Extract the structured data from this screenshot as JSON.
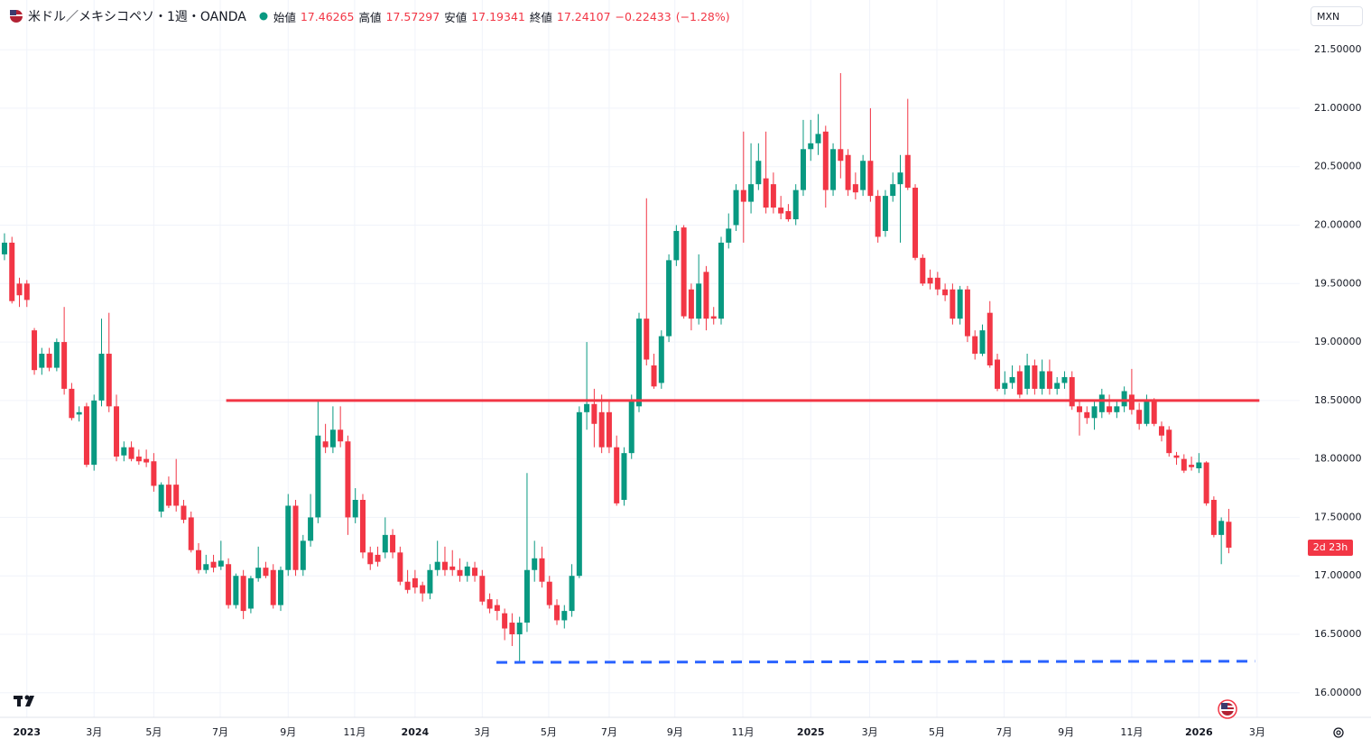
{
  "chart_data": {
    "type": "candlestick",
    "title": "米ドル／メキシコペソ・1週・OANDA",
    "ohlc_labels": [
      "始値",
      "高値",
      "安値",
      "終値"
    ],
    "change": "−0.22433",
    "change_pct": "(−1.28%)",
    "currency": "MXN",
    "countdown": "2d 23h",
    "up_color": "#089981",
    "down_color": "#f23645",
    "grid": true,
    "open": [
      19.75,
      19.85,
      19.5,
      19.5,
      19.1,
      18.78,
      18.9,
      18.78,
      19.0,
      18.6,
      18.38,
      18.45,
      17.95,
      18.5,
      18.9,
      18.45,
      18.03,
      18.1,
      18.02,
      18.0,
      17.98,
      17.55,
      17.78,
      17.78,
      17.6,
      17.5,
      17.22,
      17.05,
      17.12,
      17.08,
      17.1,
      16.75,
      17.0,
      16.72,
      16.98,
      17.07,
      17.05,
      16.75,
      17.05,
      17.6,
      17.05,
      17.3,
      17.5,
      18.15,
      18.1,
      18.25,
      18.15,
      17.5,
      17.65,
      17.2,
      17.18,
      17.2,
      17.35,
      17.2,
      16.95,
      16.98,
      16.92,
      16.85,
      17.05,
      17.12,
      17.08,
      17.05,
      17.0,
      17.07,
      17.0,
      16.8,
      16.75,
      16.68,
      16.6,
      16.5,
      16.6,
      17.05,
      17.15,
      16.95,
      16.75,
      16.62,
      16.7,
      17.0,
      18.4,
      18.47,
      18.4,
      18.4,
      18.1,
      17.65,
      18.05,
      18.45,
      19.2,
      18.8,
      18.65,
      19.05,
      19.7,
      19.98,
      19.45,
      19.2,
      19.6,
      19.22,
      19.2,
      19.85,
      20.0,
      20.3,
      20.2,
      20.35,
      20.4,
      20.35,
      20.15,
      20.12,
      20.05,
      20.3,
      20.65,
      20.7,
      20.8,
      20.3,
      20.65,
      20.6,
      20.35,
      20.3,
      20.55,
      20.25,
      19.95,
      20.25,
      20.35,
      20.6,
      20.32,
      19.72,
      19.55,
      19.55,
      19.45,
      19.45,
      19.2,
      19.45,
      19.05,
      18.9,
      19.25,
      18.85,
      18.6,
      18.65,
      18.75,
      18.6,
      18.8,
      18.6,
      18.75,
      18.6,
      18.65,
      18.7,
      18.45,
      18.4,
      18.35,
      18.4,
      18.45,
      18.4,
      18.45,
      18.55,
      18.42,
      18.3,
      18.5,
      18.28,
      18.25,
      18.03,
      18.0,
      17.95,
      17.92,
      17.97,
      17.65,
      17.35,
      17.46265
    ],
    "high": [
      19.93,
      19.9,
      19.55,
      19.53,
      19.12,
      18.95,
      18.95,
      19.03,
      19.3,
      18.65,
      18.45,
      18.48,
      18.55,
      19.2,
      19.25,
      18.55,
      18.15,
      18.15,
      18.08,
      18.08,
      18.05,
      17.8,
      17.85,
      18.0,
      17.65,
      17.55,
      17.28,
      17.18,
      17.18,
      17.3,
      17.15,
      17.02,
      17.05,
      17.0,
      17.25,
      17.12,
      17.1,
      17.08,
      17.7,
      17.65,
      17.35,
      17.7,
      18.5,
      18.3,
      18.45,
      18.45,
      18.2,
      17.75,
      17.7,
      17.25,
      17.25,
      17.5,
      17.4,
      17.25,
      17.05,
      17.05,
      16.95,
      17.1,
      17.3,
      17.25,
      17.22,
      17.15,
      17.12,
      17.12,
      17.05,
      16.85,
      16.8,
      16.72,
      16.68,
      16.65,
      17.88,
      17.3,
      17.25,
      17.0,
      16.8,
      16.75,
      17.1,
      18.45,
      19.0,
      18.6,
      18.55,
      18.5,
      18.2,
      18.1,
      18.55,
      19.25,
      20.23,
      18.9,
      19.1,
      19.75,
      20.0,
      20.0,
      19.5,
      19.75,
      19.65,
      19.3,
      19.9,
      20.1,
      20.35,
      20.8,
      20.7,
      20.7,
      20.8,
      20.45,
      20.25,
      20.18,
      20.35,
      20.9,
      20.9,
      20.95,
      20.85,
      20.7,
      21.3,
      20.65,
      20.45,
      20.6,
      21.0,
      20.3,
      20.3,
      20.45,
      20.6,
      21.08,
      20.35,
      19.75,
      19.62,
      19.6,
      19.5,
      19.5,
      19.48,
      19.48,
      19.1,
      19.15,
      19.35,
      18.9,
      18.75,
      18.8,
      18.8,
      18.9,
      18.85,
      18.85,
      18.85,
      18.7,
      18.75,
      18.75,
      18.5,
      18.45,
      18.5,
      18.6,
      18.55,
      18.5,
      18.62,
      18.77,
      18.48,
      18.55,
      18.52,
      18.32,
      18.28,
      18.06,
      18.04,
      18.02,
      18.05,
      17.98,
      17.68,
      17.5,
      17.57297
    ],
    "low": [
      19.7,
      19.33,
      19.3,
      19.3,
      18.72,
      18.72,
      18.75,
      18.75,
      18.55,
      18.33,
      18.32,
      17.93,
      17.9,
      18.45,
      18.4,
      17.98,
      17.98,
      17.98,
      17.95,
      17.93,
      17.72,
      17.5,
      17.58,
      17.55,
      17.45,
      17.2,
      17.02,
      17.02,
      17.03,
      17.05,
      16.72,
      16.72,
      16.63,
      16.68,
      16.95,
      16.98,
      16.72,
      16.7,
      17.0,
      17.0,
      17.0,
      17.25,
      17.45,
      18.05,
      18.05,
      18.1,
      17.35,
      17.45,
      17.15,
      17.05,
      17.08,
      17.15,
      17.15,
      16.92,
      16.85,
      16.85,
      16.78,
      16.8,
      17.0,
      17.0,
      17.0,
      16.95,
      16.95,
      16.95,
      16.75,
      16.68,
      16.62,
      16.45,
      16.4,
      16.25,
      16.52,
      16.95,
      16.9,
      16.72,
      16.58,
      16.55,
      16.65,
      16.98,
      18.25,
      18.1,
      18.05,
      18.05,
      17.6,
      17.6,
      18.0,
      18.4,
      18.8,
      18.6,
      18.6,
      19.0,
      19.65,
      19.2,
      19.1,
      19.15,
      19.1,
      19.15,
      19.15,
      19.8,
      19.95,
      19.85,
      20.1,
      20.3,
      20.1,
      20.1,
      20.05,
      20.03,
      20.0,
      20.25,
      20.55,
      20.6,
      20.15,
      20.25,
      20.4,
      20.25,
      20.22,
      20.25,
      20.2,
      19.85,
      19.9,
      20.2,
      19.85,
      20.3,
      19.7,
      19.48,
      19.45,
      19.4,
      19.35,
      19.15,
      19.15,
      19.0,
      18.85,
      18.88,
      18.78,
      18.58,
      18.55,
      18.6,
      18.52,
      18.55,
      18.55,
      18.55,
      18.55,
      18.55,
      18.6,
      18.42,
      18.2,
      18.3,
      18.25,
      18.35,
      18.38,
      18.35,
      18.4,
      18.38,
      18.25,
      18.28,
      18.28,
      18.15,
      18.02,
      17.95,
      17.88,
      17.9,
      17.88,
      17.6,
      17.33,
      17.1,
      17.19341
    ],
    "close": [
      19.85,
      19.35,
      19.4,
      19.36,
      18.76,
      18.9,
      18.78,
      19.0,
      18.6,
      18.35,
      18.4,
      17.95,
      18.5,
      18.9,
      18.45,
      18.02,
      18.1,
      18.0,
      17.98,
      17.97,
      17.77,
      17.78,
      17.6,
      17.6,
      17.48,
      17.22,
      17.05,
      17.1,
      17.07,
      17.13,
      16.75,
      17.0,
      16.7,
      16.98,
      17.07,
      17.0,
      16.75,
      17.05,
      17.6,
      17.05,
      17.3,
      17.5,
      18.2,
      18.1,
      18.25,
      18.15,
      17.5,
      17.65,
      17.2,
      17.1,
      17.12,
      17.35,
      17.2,
      16.95,
      16.88,
      16.9,
      16.85,
      17.05,
      17.12,
      17.05,
      17.05,
      17.0,
      17.08,
      17.0,
      16.78,
      16.72,
      16.7,
      16.55,
      16.5,
      16.6,
      17.05,
      17.15,
      16.95,
      16.75,
      16.62,
      16.7,
      17.0,
      18.4,
      18.47,
      18.3,
      18.1,
      18.1,
      17.62,
      18.05,
      18.5,
      19.2,
      18.85,
      18.62,
      19.05,
      19.7,
      19.95,
      19.22,
      19.2,
      19.5,
      19.2,
      19.2,
      19.85,
      19.97,
      20.3,
      20.2,
      20.35,
      20.55,
      20.15,
      20.15,
      20.1,
      20.05,
      20.3,
      20.65,
      20.7,
      20.78,
      20.3,
      20.65,
      20.55,
      20.3,
      20.28,
      20.55,
      20.25,
      19.9,
      20.25,
      20.35,
      20.45,
      20.32,
      19.72,
      19.5,
      19.5,
      19.45,
      19.4,
      19.2,
      19.45,
      19.05,
      18.9,
      19.1,
      18.8,
      18.6,
      18.65,
      18.7,
      18.55,
      18.8,
      18.6,
      18.75,
      18.6,
      18.65,
      18.7,
      18.45,
      18.4,
      18.35,
      18.45,
      18.55,
      18.4,
      18.45,
      18.58,
      18.42,
      18.3,
      18.5,
      18.3,
      18.2,
      18.05,
      18.01,
      17.9,
      17.93,
      17.97,
      17.62,
      17.35,
      17.47,
      17.24107
    ],
    "levels": [
      {
        "color": "#f23645",
        "style": "solid",
        "x": [
          29.7,
          168.1
        ],
        "y": [
          18.5,
          18.5
        ]
      },
      {
        "color": "#2962ff",
        "style": "dashed",
        "x": [
          65.9,
          167.5
        ],
        "y": [
          16.26,
          16.27
        ]
      }
    ],
    "xlim": [
      -0.6,
      173.5
    ],
    "ylim": [
      15.79,
      21.64
    ],
    "xticks": [
      {
        "value": 3.0,
        "label": "2023"
      },
      {
        "value": 12.0,
        "label": "3月"
      },
      {
        "value": 20.0,
        "label": "5月"
      },
      {
        "value": 28.9,
        "label": "7月"
      },
      {
        "value": 38.0,
        "label": "9月"
      },
      {
        "value": 46.9,
        "label": "11月"
      },
      {
        "value": 55.0,
        "label": "2024"
      },
      {
        "value": 64.0,
        "label": "3月"
      },
      {
        "value": 72.9,
        "label": "5月"
      },
      {
        "value": 81.0,
        "label": "7月"
      },
      {
        "value": 89.8,
        "label": "9月"
      },
      {
        "value": 98.9,
        "label": "11月"
      },
      {
        "value": 108.0,
        "label": "2025"
      },
      {
        "value": 115.9,
        "label": "3月"
      },
      {
        "value": 124.9,
        "label": "5月"
      },
      {
        "value": 133.9,
        "label": "7月"
      },
      {
        "value": 142.2,
        "label": "9月"
      },
      {
        "value": 151.0,
        "label": "11月"
      },
      {
        "value": 160.0,
        "label": "2026"
      },
      {
        "value": 167.8,
        "label": "3月"
      }
    ],
    "yticks": [
      {
        "value": 16,
        "label": "16.00000"
      },
      {
        "value": 16.5,
        "label": "16.50000"
      },
      {
        "value": 17,
        "label": "17.00000"
      },
      {
        "value": 17.5,
        "label": "17.50000"
      },
      {
        "value": 18,
        "label": "18.00000"
      },
      {
        "value": 18.5,
        "label": "18.50000"
      },
      {
        "value": 19,
        "label": "19.00000"
      },
      {
        "value": 19.5,
        "label": "19.50000"
      },
      {
        "value": 20,
        "label": "20.00000"
      },
      {
        "value": 20.5,
        "label": "20.50000"
      },
      {
        "value": 21,
        "label": "21.00000"
      },
      {
        "value": 21.5,
        "label": "21.50000"
      }
    ]
  }
}
